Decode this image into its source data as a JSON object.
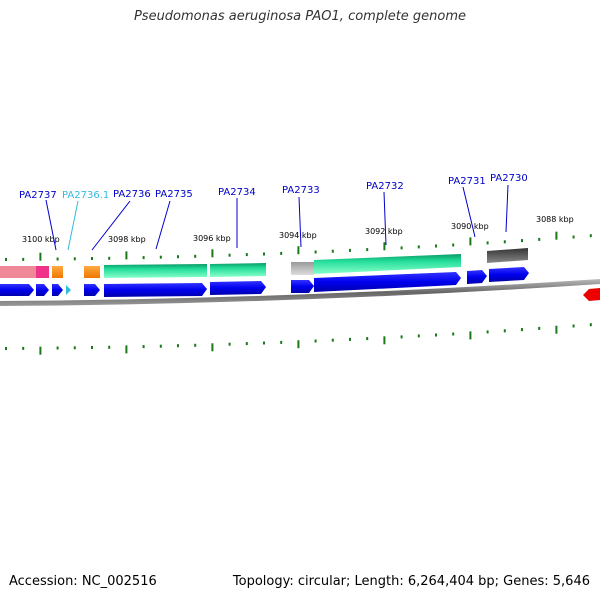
{
  "title": "Pseudomonas aeruginosa PAO1, complete genome",
  "footer": {
    "accession": "Accession: NC_002516",
    "summary": "Topology: circular; Length: 6,264,404 bp; Genes: 5,646"
  },
  "scale_labels": [
    "3100 kbp",
    "3098 kbp",
    "3096 kbp",
    "3094 kbp",
    "3092 kbp",
    "3090 kbp",
    "3088 kbp"
  ],
  "gene_labels": [
    {
      "name": "PA2737",
      "color": "#0000cc"
    },
    {
      "name": "PA2736.1",
      "color": "#33bbdd"
    },
    {
      "name": "PA2736",
      "color": "#0000cc"
    },
    {
      "name": "PA2735",
      "color": "#0000cc"
    },
    {
      "name": "PA2734",
      "color": "#0000cc"
    },
    {
      "name": "PA2733",
      "color": "#0000cc"
    },
    {
      "name": "PA2732",
      "color": "#0000cc"
    },
    {
      "name": "PA2731",
      "color": "#0000cc"
    },
    {
      "name": "PA2730",
      "color": "#0000cc"
    }
  ],
  "colors": {
    "gene_arrow": "#0000ee",
    "backbone": "#777777",
    "tick": "#1a7a1a",
    "teal_feature": "#22dd99",
    "orange_feature": "#ff8800",
    "pink_feature": "#ee3388",
    "grey_feature": "#bbbbbb",
    "dark_feature": "#555555",
    "red_feature": "#ee0000"
  }
}
